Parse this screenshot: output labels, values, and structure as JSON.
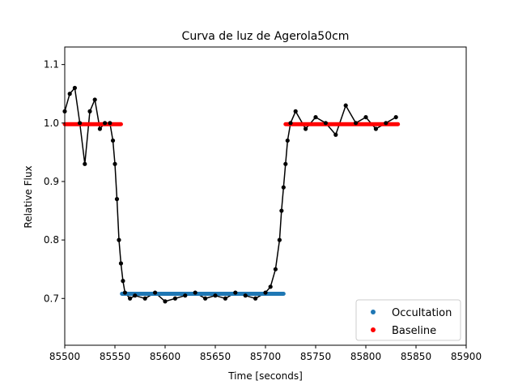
{
  "chart_data": {
    "type": "scatter",
    "title": "Curva de luz de Agerola50cm",
    "xlabel": "Time [seconds]",
    "ylabel": "Relative Flux",
    "xlim": [
      85500,
      85900
    ],
    "ylim": [
      0.62,
      1.13
    ],
    "xticks": [
      85500,
      85550,
      85600,
      85650,
      85700,
      85750,
      85800,
      85850,
      85900
    ],
    "yticks": [
      0.7,
      0.8,
      0.9,
      1.0,
      1.1
    ],
    "xtick_labels": [
      "85500",
      "85550",
      "85600",
      "85650",
      "85700",
      "85750",
      "85800",
      "85850",
      "85900"
    ],
    "ytick_labels": [
      "0.7",
      "0.8",
      "0.9",
      "1.0",
      "1.1"
    ],
    "legend": {
      "placement": "lower-right",
      "entries": [
        {
          "label": "Occultation",
          "color": "#1f77b4"
        },
        {
          "label": "Baseline",
          "color": "#ff0000"
        }
      ]
    },
    "series": [
      {
        "name": "Occultation",
        "color": "#1f77b4",
        "kind": "model-segment",
        "x": [
          85557,
          85718
        ],
        "y": [
          0.708,
          0.708
        ]
      },
      {
        "name": "Baseline",
        "color": "#ff0000",
        "kind": "model-segment",
        "segments": [
          {
            "x": [
              85500,
              85556
            ],
            "y": [
              0.998,
              0.998
            ]
          },
          {
            "x": [
              85720,
              85832
            ],
            "y": [
              0.998,
              0.998
            ]
          }
        ]
      },
      {
        "kind": "observed",
        "color": "#000000",
        "x": [
          85500,
          85505,
          85510,
          85515,
          85520,
          85525,
          85530,
          85535,
          85540,
          85545,
          85548,
          85550,
          85552,
          85554,
          85556,
          85558,
          85560,
          85565,
          85570,
          85580,
          85590,
          85600,
          85610,
          85620,
          85630,
          85640,
          85650,
          85660,
          85670,
          85680,
          85690,
          85700,
          85705,
          85710,
          85714,
          85716,
          85718,
          85720,
          85722,
          85725,
          85730,
          85740,
          85750,
          85760,
          85770,
          85780,
          85790,
          85800,
          85810,
          85820,
          85830
        ],
        "y": [
          1.02,
          1.05,
          1.06,
          1.0,
          0.93,
          1.02,
          1.04,
          0.99,
          1.0,
          1.0,
          0.97,
          0.93,
          0.87,
          0.8,
          0.76,
          0.73,
          0.71,
          0.7,
          0.705,
          0.7,
          0.71,
          0.695,
          0.7,
          0.705,
          0.71,
          0.7,
          0.705,
          0.7,
          0.71,
          0.705,
          0.7,
          0.71,
          0.72,
          0.75,
          0.8,
          0.85,
          0.89,
          0.93,
          0.97,
          1.0,
          1.02,
          0.99,
          1.01,
          1.0,
          0.98,
          1.03,
          1.0,
          1.01,
          0.99,
          1.0,
          1.01
        ]
      }
    ]
  }
}
